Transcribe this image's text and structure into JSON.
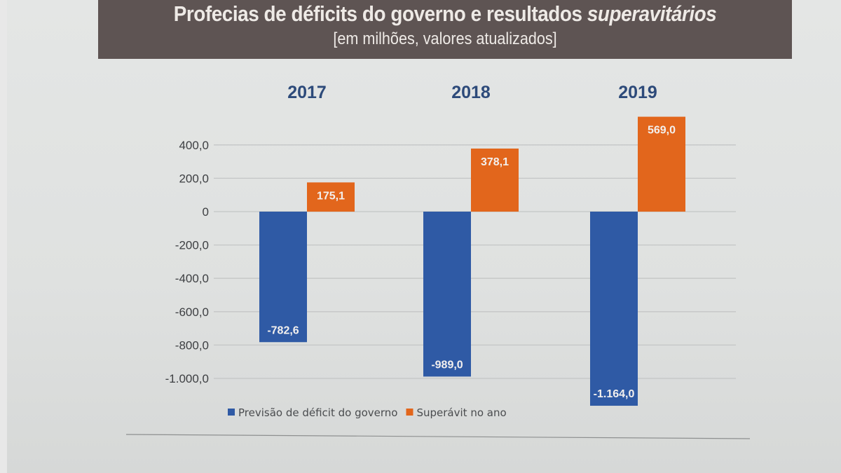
{
  "header": {
    "title_main": "Profecias de déficits do governo e resultados ",
    "title_italic": "superavitários",
    "subtitle": "[em milhões, valores atualizados]"
  },
  "chart_data": {
    "type": "bar",
    "title": "Profecias de déficits do governo e resultados superavitários",
    "subtitle": "[em milhões, valores atualizados]",
    "categories": [
      "2017",
      "2018",
      "2019"
    ],
    "series": [
      {
        "name": "Previsão de déficit do governo",
        "color": "#2f5aa5",
        "values": [
          -782.6,
          -989.0,
          -1164.0
        ],
        "labels": [
          "-782,6",
          "-989,0",
          "-1.164,0"
        ]
      },
      {
        "name": "Superávit no ano",
        "color": "#e2661c",
        "values": [
          175.1,
          378.1,
          569.0
        ],
        "labels": [
          "175,1",
          "378,1",
          "569,0"
        ]
      }
    ],
    "yticks": [
      400,
      200,
      0,
      -200,
      -400,
      -600,
      -800,
      -1000
    ],
    "ytick_labels": [
      "400,0",
      "200,0",
      "0",
      "-200,0",
      "-400,0",
      "-600,0",
      "-800,0",
      "-1.000,0"
    ],
    "ylim": [
      -1164,
      569
    ],
    "grid": true,
    "legend": "bottom-left",
    "xlabel": "",
    "ylabel": ""
  }
}
